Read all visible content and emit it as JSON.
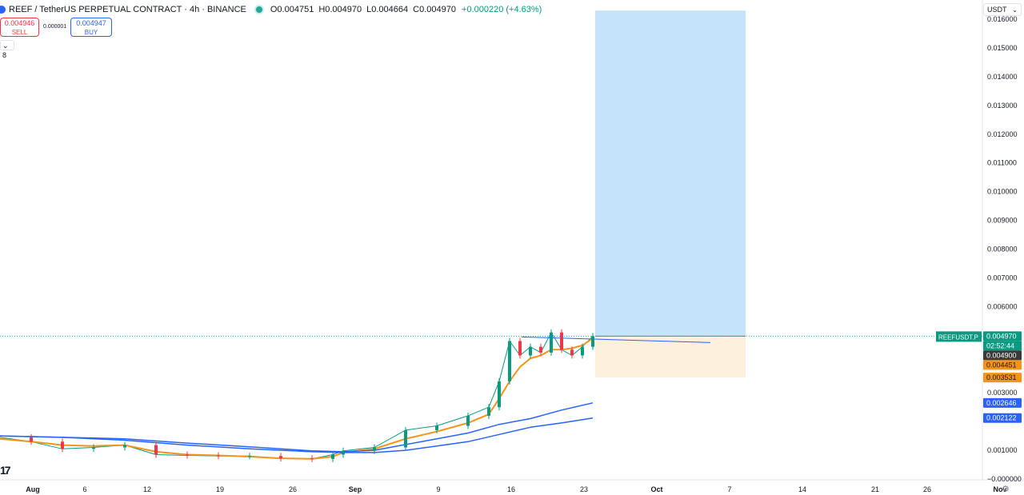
{
  "header": {
    "symbol_title": "REEF / TetherUS PERPETUAL CONTRACT · 4h · BINANCE",
    "ohlc": {
      "open": "O0.004751",
      "high": "H0.004970",
      "low": "L0.004664",
      "close": "C0.004970",
      "change": "+0.000220 (+4.63%)"
    }
  },
  "trade_panel": {
    "sell_price": "0.004946",
    "sell_label": "SELL",
    "spread": "0.000001",
    "buy_price": "0.004947",
    "buy_label": "BUY"
  },
  "indicators_toggle": "8",
  "currency_selector": "USDT",
  "logo_text": "17",
  "colors": {
    "up": "#089981",
    "down": "#f23645",
    "ma_fast": "#f7931a",
    "ma_slow": "#2962ff",
    "profit_zone": "#c5e3fb",
    "loss_zone": "#fdf0dc"
  },
  "chart_data": {
    "type": "line",
    "y_axis": {
      "range": [
        0,
        0.016
      ],
      "ticks": [
        "0.016000",
        "0.015000",
        "0.014000",
        "0.013000",
        "0.012000",
        "0.011000",
        "0.010000",
        "0.009000",
        "0.008000",
        "0.007000",
        "0.006000",
        "0.003000",
        "0.001000",
        "−0.000000"
      ],
      "tick_values": [
        0.016,
        0.015,
        0.014,
        0.013,
        0.012,
        0.011,
        0.01,
        0.009,
        0.008,
        0.007,
        0.006,
        0.003,
        0.001,
        0.0
      ]
    },
    "x_axis": {
      "labels": [
        "Aug",
        "6",
        "12",
        "19",
        "26",
        "Sep",
        "9",
        "16",
        "23",
        "Oct",
        "7",
        "14",
        "21",
        "26",
        "Nov"
      ],
      "positions": [
        1,
        6,
        12,
        19,
        26,
        32,
        40,
        47,
        54,
        61,
        68,
        75,
        82,
        87,
        94
      ]
    },
    "price_labels": [
      {
        "text": "REEFUSDT.P",
        "value": 0.00497,
        "kind": "symbol"
      },
      {
        "text": "0.004970",
        "value": 0.00497,
        "kind": "last"
      },
      {
        "text": "02:52:44",
        "value": 0.00497,
        "kind": "countdown"
      },
      {
        "text": "0.004900",
        "value": 0.0049,
        "kind": "ma_fast_tag"
      },
      {
        "text": "0.004451",
        "value": 0.004451,
        "kind": "orange"
      },
      {
        "text": "0.003531",
        "value": 0.003531,
        "kind": "orange"
      },
      {
        "text": "0.002646",
        "value": 0.002646,
        "kind": "blue"
      },
      {
        "text": "0.002122",
        "value": 0.002122,
        "kind": "blue"
      }
    ],
    "position": {
      "entry": 0.00497,
      "target": 0.0163,
      "stop": 0.00353,
      "start_day": 57,
      "end_day": 71
    },
    "series": [
      {
        "key": "price",
        "x": [
          0,
          3,
          6,
          9,
          12,
          15,
          18,
          21,
          24,
          27,
          30,
          32,
          33,
          36,
          39,
          42,
          45,
          47,
          48,
          49,
          50,
          51,
          52,
          53,
          54,
          55,
          56,
          57
        ],
        "y": [
          0.00145,
          0.0013,
          0.00105,
          0.0011,
          0.00118,
          0.00085,
          0.00082,
          0.0008,
          0.0008,
          0.00072,
          0.0007,
          0.00085,
          0.00098,
          0.0011,
          0.0017,
          0.00185,
          0.0022,
          0.0025,
          0.0034,
          0.0048,
          0.0043,
          0.0046,
          0.0044,
          0.0051,
          0.0045,
          0.0043,
          0.0046,
          0.00497
        ]
      },
      {
        "key": "ma_fast",
        "x": [
          0,
          3,
          6,
          9,
          12,
          15,
          18,
          21,
          24,
          27,
          30,
          32,
          33,
          36,
          39,
          42,
          45,
          47,
          48,
          49,
          50,
          51,
          52,
          53,
          54,
          55,
          56,
          57
        ],
        "y": [
          0.0014,
          0.0013,
          0.00118,
          0.00115,
          0.00118,
          0.00095,
          0.00085,
          0.00082,
          0.00078,
          0.00072,
          0.0007,
          0.00078,
          0.00092,
          0.00105,
          0.0014,
          0.00165,
          0.00195,
          0.00225,
          0.0028,
          0.0034,
          0.0039,
          0.0042,
          0.0043,
          0.0045,
          0.0045,
          0.00455,
          0.00465,
          0.0049
        ]
      },
      {
        "key": "ma_mid",
        "x": [
          0,
          6,
          12,
          18,
          24,
          30,
          33,
          36,
          39,
          42,
          45,
          48,
          51,
          54,
          57
        ],
        "y": [
          0.0015,
          0.00145,
          0.0014,
          0.00125,
          0.00112,
          0.00098,
          0.00095,
          0.001,
          0.0012,
          0.0014,
          0.0016,
          0.0019,
          0.0021,
          0.0024,
          0.00265
        ]
      },
      {
        "key": "ma_slow",
        "x": [
          0,
          6,
          12,
          18,
          24,
          30,
          33,
          36,
          39,
          42,
          45,
          48,
          51,
          54,
          57
        ],
        "y": [
          0.0015,
          0.00145,
          0.00135,
          0.00118,
          0.00105,
          0.00095,
          0.00092,
          0.00092,
          0.001,
          0.00115,
          0.0013,
          0.00155,
          0.0018,
          0.00195,
          0.00212
        ]
      }
    ]
  }
}
